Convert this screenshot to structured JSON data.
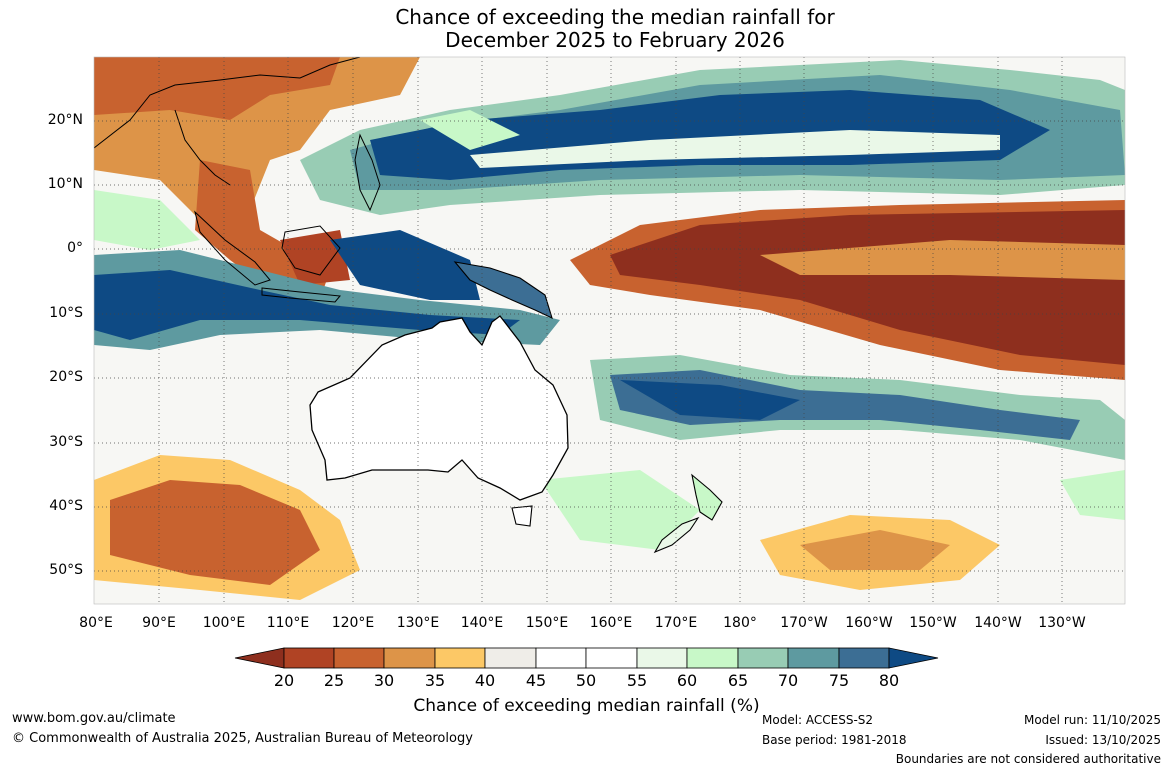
{
  "title": {
    "line1": "Chance of exceeding the median rainfall for",
    "line2": "December 2025 to February 2026"
  },
  "map": {
    "latitude_labels": [
      "20°N",
      "10°N",
      "0°",
      "10°S",
      "20°S",
      "30°S",
      "40°S",
      "50°S"
    ],
    "longitude_labels": [
      "80°E",
      "90°E",
      "100°E",
      "110°E",
      "120°E",
      "130°E",
      "140°E",
      "150°E",
      "160°E",
      "170°E",
      "180°",
      "170°W",
      "160°W",
      "150°W",
      "140°W",
      "130°W"
    ]
  },
  "colorbar": {
    "ticks": [
      "20",
      "25",
      "30",
      "35",
      "40",
      "45",
      "50",
      "55",
      "60",
      "65",
      "70",
      "75",
      "80"
    ],
    "colors": [
      "#8e2f1e",
      "#b04324",
      "#c8622f",
      "#dd9448",
      "#fcc866",
      "#efede8",
      "#ffffff",
      "#ffffff",
      "#eaf8e8",
      "#c8f8c8",
      "#98ccb4",
      "#5e9aa0",
      "#3c6e94",
      "#0e4a84"
    ],
    "label": "Chance of exceeding median rainfall (%)"
  },
  "footer": {
    "website": "www.bom.gov.au/climate",
    "copyright": "© Commonwealth of Australia 2025, Australian Bureau of Meteorology",
    "model": "Model: ACCESS-S2",
    "base_period": "Base period: 1981-2018",
    "model_run": "Model run: 11/10/2025",
    "issued": "Issued: 13/10/2025",
    "disclaimer": "Boundaries are not considered authoritative"
  }
}
